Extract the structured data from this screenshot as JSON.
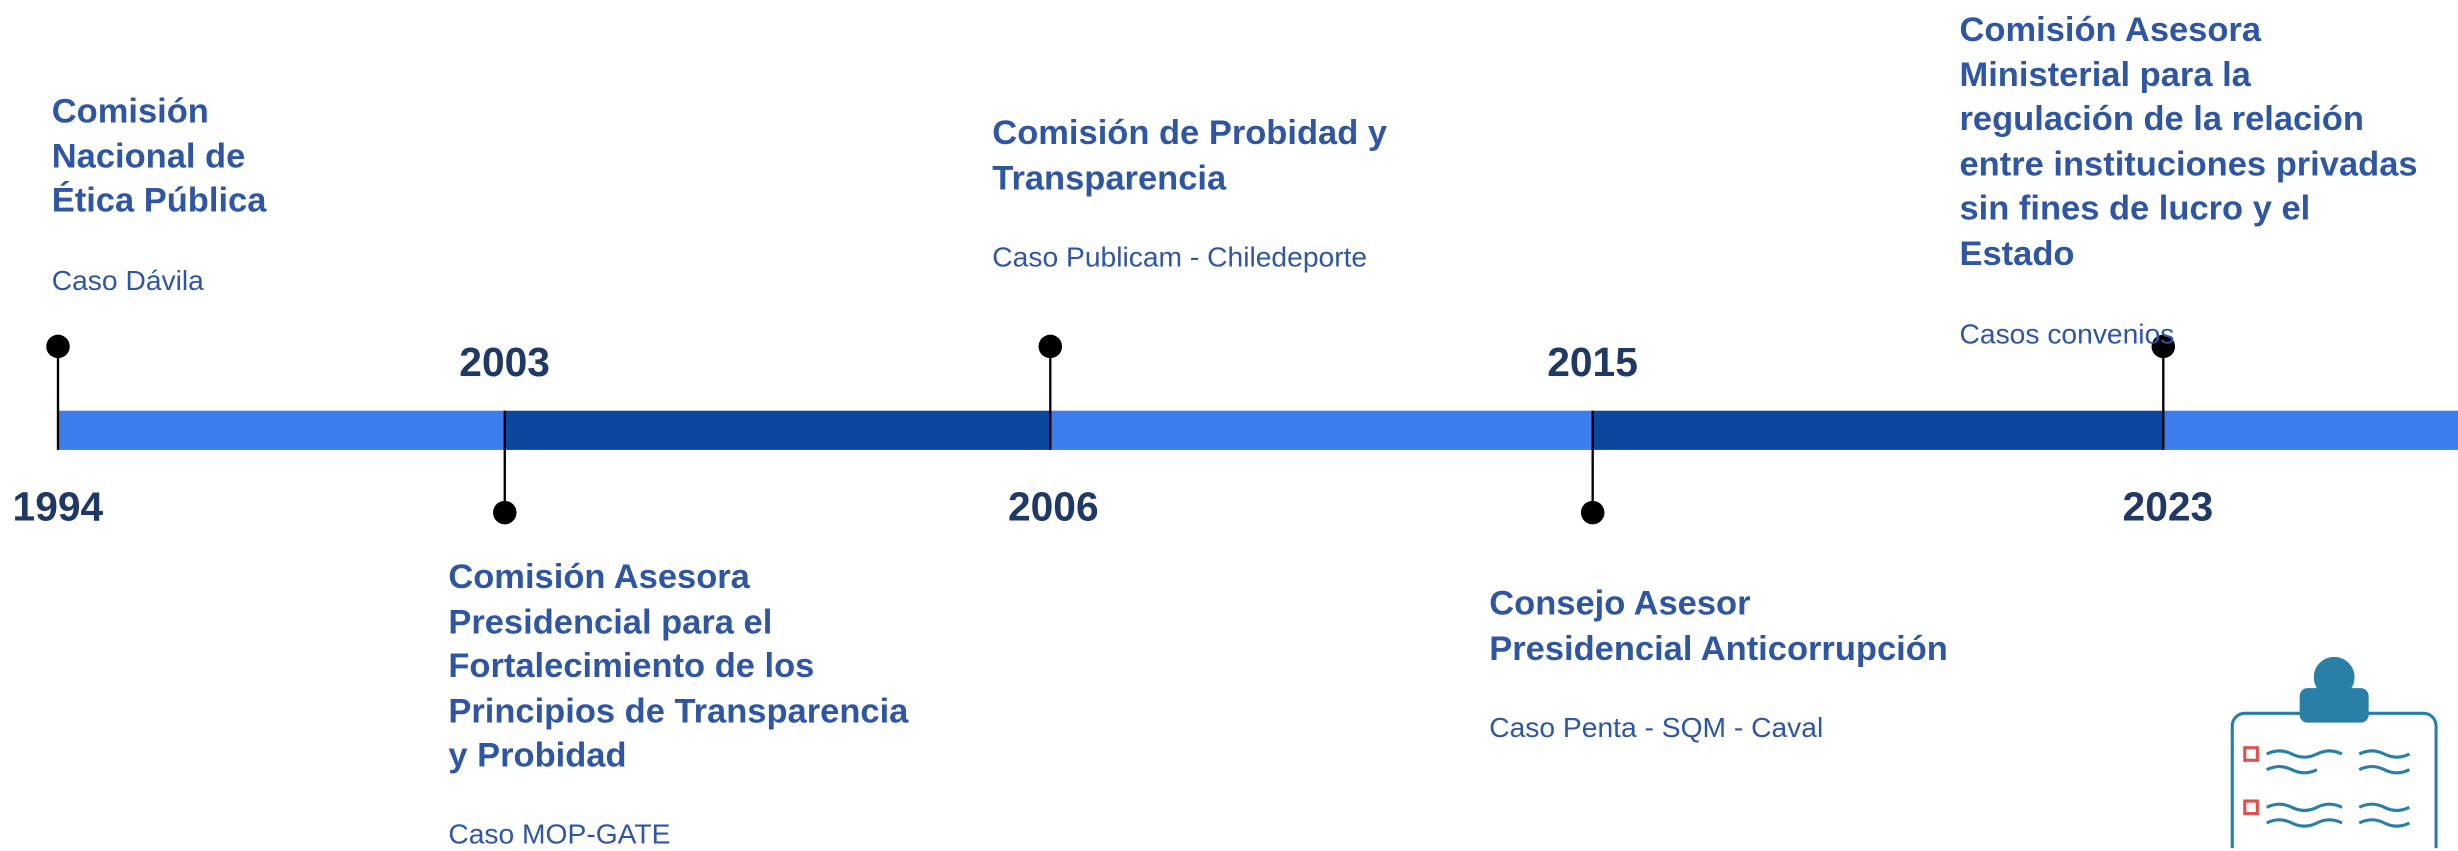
{
  "timeline": {
    "events": [
      {
        "year": "1994",
        "title": [
          "Comisión",
          "Nacional de",
          "Ética Pública"
        ],
        "subtitle": "Caso Dávila"
      },
      {
        "year": "2003",
        "title": [
          "Comisión Asesora",
          "Presidencial para el",
          "Fortalecimiento de los",
          "Principios de Transparencia",
          "y Probidad"
        ],
        "subtitle": "Caso MOP-GATE"
      },
      {
        "year": "2006",
        "title": [
          "Comisión de Probidad y",
          "Transparencia"
        ],
        "subtitle": "Caso Publicam - Chiledeporte"
      },
      {
        "year": "2015",
        "title": [
          "Consejo Asesor",
          "Presidencial Anticorrupción"
        ],
        "subtitle": "Caso Penta - SQM - Caval"
      },
      {
        "year": "2023",
        "title": [
          "Comisión Asesora",
          "Ministerial para la",
          "regulación de la relación",
          "entre instituciones privadas",
          "sin fines de lucro y el",
          "Estado"
        ],
        "subtitle": "Casos convenios"
      }
    ]
  }
}
